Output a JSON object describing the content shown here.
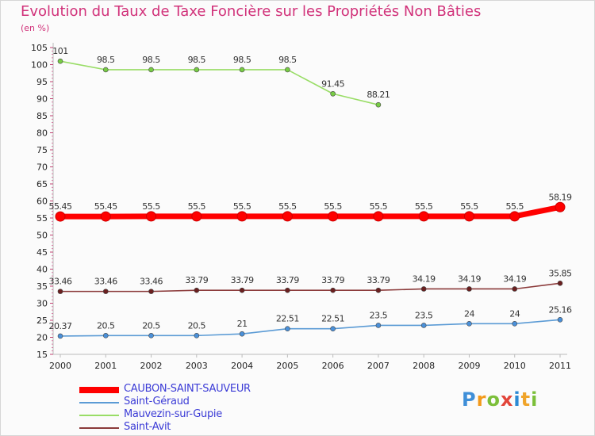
{
  "title": "Evolution du Taux de Taxe Foncière sur les Propriétés Non Bâties",
  "subtitle": "(en %)",
  "logo": {
    "letters": [
      "P",
      "r",
      "o",
      "x",
      "i",
      "t",
      "i"
    ]
  },
  "chart_data": {
    "type": "line",
    "title": "Evolution du Taux de Taxe Foncière sur les Propriétés Non Bâties",
    "ylabel": "(en %)",
    "xlabel": "",
    "ylim": [
      15,
      105
    ],
    "yticks": [
      "15",
      "20",
      "25",
      "30",
      "35",
      "40",
      "45",
      "50",
      "55",
      "60",
      "65",
      "70",
      "75",
      "80",
      "85",
      "90",
      "95",
      "100",
      "105"
    ],
    "categories": [
      "2000",
      "2001",
      "2002",
      "2003",
      "2004",
      "2005",
      "2006",
      "2007",
      "2008",
      "2009",
      "2010",
      "2011"
    ],
    "grid": false,
    "legend_position": "bottom-left",
    "series": [
      {
        "name": "CAUBON-SAINT-SAUVEUR",
        "color": "#ff0000",
        "thick": true,
        "values": [
          55.45,
          55.45,
          55.5,
          55.5,
          55.5,
          55.5,
          55.5,
          55.5,
          55.5,
          55.5,
          55.5,
          58.19
        ],
        "labels": [
          "55.45",
          "55.45",
          "55.5",
          "55.5",
          "55.5",
          "55.5",
          "55.5",
          "55.5",
          "55.5",
          "55.5",
          "55.5",
          "58.19"
        ]
      },
      {
        "name": "Saint-Géraud",
        "color": "#5b9bd5",
        "point_color": "#4a90d9",
        "values": [
          20.37,
          20.5,
          20.5,
          20.5,
          21,
          22.51,
          22.51,
          23.5,
          23.5,
          24,
          24,
          25.16
        ],
        "labels": [
          "20.37",
          "20.5",
          "20.5",
          "20.5",
          "21",
          "22.51",
          "22.51",
          "23.5",
          "23.5",
          "24",
          "24",
          "25.16"
        ]
      },
      {
        "name": "Mauvezin-sur-Gupie",
        "color": "#99dd66",
        "point_color": "#77cc44",
        "values": [
          101,
          98.5,
          98.5,
          98.5,
          98.5,
          98.5,
          91.45,
          88.21,
          null,
          null,
          null,
          null
        ],
        "labels": [
          "101",
          "98.5",
          "98.5",
          "98.5",
          "98.5",
          "98.5",
          "91.45",
          "88.21",
          null,
          null,
          null,
          null
        ]
      },
      {
        "name": "Saint-Avit",
        "color": "#8b3a3a",
        "point_color": "#6b1f1f",
        "values": [
          33.46,
          33.46,
          33.46,
          33.79,
          33.79,
          33.79,
          33.79,
          33.79,
          34.19,
          34.19,
          34.19,
          35.85
        ],
        "labels": [
          "33.46",
          "33.46",
          "33.46",
          "33.79",
          "33.79",
          "33.79",
          "33.79",
          "33.79",
          "34.19",
          "34.19",
          "34.19",
          "35.85"
        ]
      }
    ]
  }
}
